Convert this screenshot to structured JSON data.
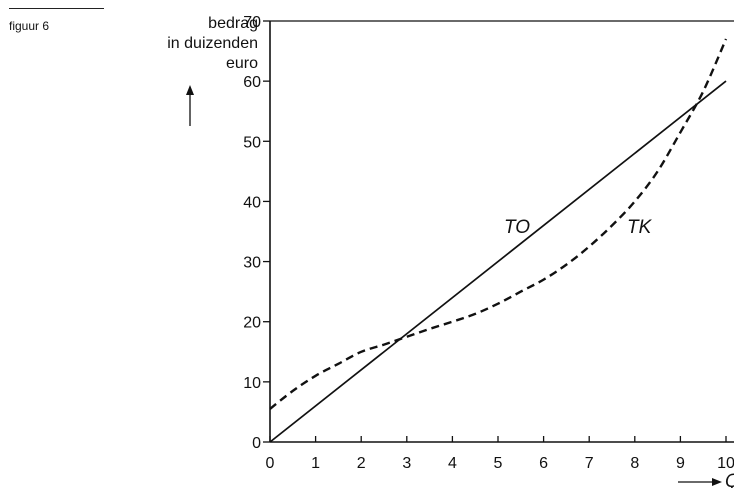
{
  "figure_label": "figuur 6",
  "chart_data": {
    "type": "line",
    "ylabel_lines": [
      "bedrag",
      "in duizenden",
      "euro"
    ],
    "xlabel": "Q",
    "xlim": [
      0,
      10
    ],
    "ylim": [
      0,
      70
    ],
    "x_ticks": [
      0,
      1,
      2,
      3,
      4,
      5,
      6,
      7,
      8,
      9,
      10
    ],
    "y_ticks": [
      0,
      10,
      20,
      30,
      40,
      50,
      60,
      70
    ],
    "grid": false,
    "series": [
      {
        "name": "TO",
        "style": "solid",
        "x": [
          0,
          10
        ],
        "y": [
          0,
          60
        ]
      },
      {
        "name": "TK",
        "style": "dashed",
        "x": [
          0,
          0.5,
          1,
          1.5,
          2,
          2.5,
          3,
          3.5,
          4,
          4.5,
          5,
          5.5,
          6,
          6.5,
          7,
          7.5,
          8,
          8.5,
          9,
          9.5,
          10
        ],
        "y": [
          5.5,
          8.5,
          11,
          13,
          15,
          16.2,
          17.5,
          18.8,
          20,
          21.3,
          23,
          25,
          27,
          29.5,
          32.5,
          36,
          40,
          45,
          51.5,
          58.3,
          67
        ]
      }
    ]
  }
}
